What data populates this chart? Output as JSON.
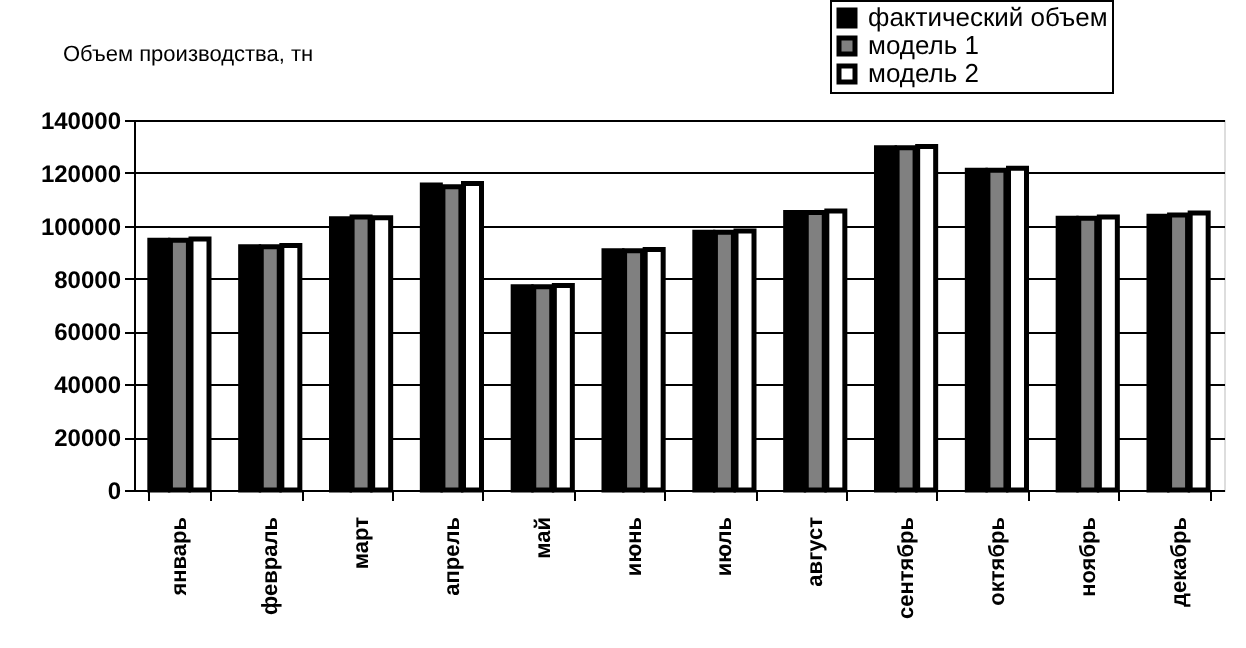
{
  "chart_data": {
    "type": "bar",
    "ylabel": "Объем производства, тн",
    "categories": [
      "январь",
      "февраль",
      "март",
      "апрель",
      "май",
      "июнь",
      "июль",
      "август",
      "сентябрь",
      "октябрь",
      "ноябрь",
      "декабрь"
    ],
    "series": [
      {
        "name": "фактический объем",
        "color": "#000000",
        "values": [
          94500,
          92000,
          102600,
          115400,
          76900,
          90500,
          97500,
          105000,
          129500,
          121000,
          102800,
          103600
        ]
      },
      {
        "name": "модель 1",
        "color": "#808080",
        "values": [
          94500,
          92000,
          103300,
          114700,
          76900,
          90500,
          97500,
          105000,
          129500,
          121000,
          102800,
          104100
        ]
      },
      {
        "name": "модель 2",
        "color": "#ffffff",
        "values": [
          95000,
          92500,
          103000,
          116000,
          77400,
          91000,
          98000,
          105600,
          130000,
          121700,
          103300,
          104800
        ]
      }
    ],
    "ylim": [
      0,
      140000
    ],
    "yticks": [
      0,
      20000,
      40000,
      60000,
      80000,
      100000,
      120000,
      140000
    ],
    "grid": "y",
    "legend": "top right"
  }
}
